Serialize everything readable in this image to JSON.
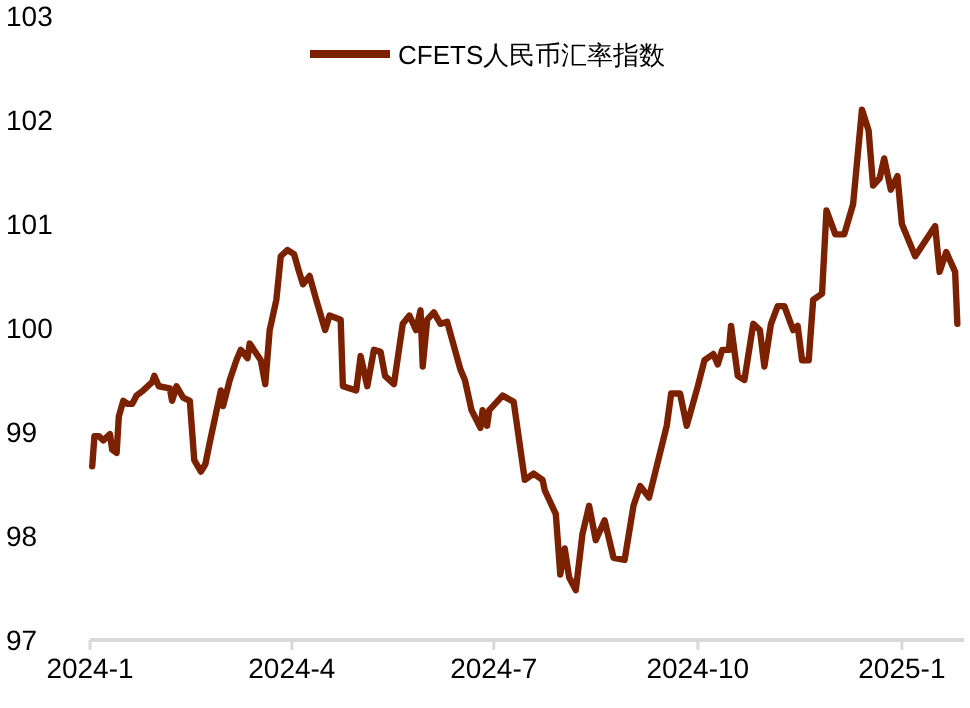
{
  "chart_data": {
    "type": "line",
    "legend": "top",
    "xlim": [
      "2024-01-01",
      "2025-01-29"
    ],
    "xticks": [
      {
        "value": "2024-01-01",
        "label": "2024-1"
      },
      {
        "value": "2024-04-01",
        "label": "2024-4"
      },
      {
        "value": "2024-07-01",
        "label": "2024-7"
      },
      {
        "value": "2024-10-01",
        "label": "2024-10"
      },
      {
        "value": "2025-01-01",
        "label": "2025-1"
      }
    ],
    "ylim": [
      97,
      103
    ],
    "yticks": [
      97,
      98,
      99,
      100,
      101,
      102,
      103
    ],
    "grid": false,
    "x": [
      "2024-01-02",
      "2024-01-03",
      "2024-01-05",
      "2024-01-07",
      "2024-01-10",
      "2024-01-11",
      "2024-01-13",
      "2024-01-14",
      "2024-01-16",
      "2024-01-18",
      "2024-01-20",
      "2024-01-22",
      "2024-01-25",
      "2024-01-29",
      "2024-01-30",
      "2024-02-01",
      "2024-02-06",
      "2024-02-07",
      "2024-02-09",
      "2024-02-12",
      "2024-02-15",
      "2024-02-17",
      "2024-02-20",
      "2024-02-22",
      "2024-02-24",
      "2024-02-29",
      "2024-03-01",
      "2024-03-04",
      "2024-03-07",
      "2024-03-09",
      "2024-03-12",
      "2024-03-13",
      "2024-03-18",
      "2024-03-20",
      "2024-03-22",
      "2024-03-25",
      "2024-03-27",
      "2024-03-30",
      "2024-04-02",
      "2024-04-04",
      "2024-04-06",
      "2024-04-09",
      "2024-04-12",
      "2024-04-16",
      "2024-04-18",
      "2024-04-23",
      "2024-04-24",
      "2024-04-30",
      "2024-05-02",
      "2024-05-05",
      "2024-05-08",
      "2024-05-11",
      "2024-05-13",
      "2024-05-17",
      "2024-05-21",
      "2024-05-24",
      "2024-05-27",
      "2024-05-29",
      "2024-05-30",
      "2024-06-01",
      "2024-06-04",
      "2024-06-07",
      "2024-06-10",
      "2024-06-16",
      "2024-06-18",
      "2024-06-21",
      "2024-06-25",
      "2024-06-26",
      "2024-06-28",
      "2024-06-29",
      "2024-07-05",
      "2024-07-10",
      "2024-07-15",
      "2024-07-19",
      "2024-07-23",
      "2024-07-24",
      "2024-07-29",
      "2024-07-31",
      "2024-08-02",
      "2024-08-04",
      "2024-08-07",
      "2024-08-10",
      "2024-08-13",
      "2024-08-16",
      "2024-08-20",
      "2024-08-24",
      "2024-08-29",
      "2024-09-02",
      "2024-09-05",
      "2024-09-09",
      "2024-09-17",
      "2024-09-19",
      "2024-09-23",
      "2024-09-26",
      "2024-10-01",
      "2024-10-04",
      "2024-10-08",
      "2024-10-10",
      "2024-10-12",
      "2024-10-15",
      "2024-10-16",
      "2024-10-19",
      "2024-10-22",
      "2024-10-26",
      "2024-10-29",
      "2024-10-31",
      "2024-11-03",
      "2024-11-06",
      "2024-11-09",
      "2024-11-13",
      "2024-11-15",
      "2024-11-17",
      "2024-11-20",
      "2024-11-22",
      "2024-11-26",
      "2024-11-28",
      "2024-12-02",
      "2024-12-06",
      "2024-12-10",
      "2024-12-14",
      "2024-12-17",
      "2024-12-19",
      "2024-12-22",
      "2024-12-24",
      "2024-12-27",
      "2024-12-30",
      "2025-01-01",
      "2025-01-07",
      "2025-01-16",
      "2025-01-18",
      "2025-01-21",
      "2025-01-25",
      "2025-01-26"
    ],
    "series": [
      {
        "name": "CFETS人民币汇率指数",
        "color": "#7b2100",
        "values": [
          98.67,
          98.96,
          98.96,
          98.92,
          98.98,
          98.83,
          98.8,
          99.15,
          99.3,
          99.27,
          99.27,
          99.35,
          99.4,
          99.48,
          99.54,
          99.44,
          99.42,
          99.3,
          99.44,
          99.33,
          99.3,
          98.73,
          98.62,
          98.69,
          98.9,
          99.4,
          99.25,
          99.5,
          99.69,
          99.79,
          99.71,
          99.85,
          99.69,
          99.46,
          99.98,
          100.27,
          100.69,
          100.75,
          100.71,
          100.56,
          100.42,
          100.5,
          100.27,
          99.98,
          100.12,
          100.08,
          99.44,
          99.4,
          99.73,
          99.44,
          99.79,
          99.77,
          99.54,
          99.46,
          100.04,
          100.12,
          99.98,
          100.17,
          99.63,
          100.08,
          100.15,
          100.04,
          100.06,
          99.6,
          99.5,
          99.21,
          99.04,
          99.21,
          99.06,
          99.21,
          99.35,
          99.29,
          98.54,
          98.6,
          98.54,
          98.44,
          98.21,
          97.63,
          97.88,
          97.6,
          97.48,
          98.02,
          98.29,
          97.96,
          98.15,
          97.79,
          97.77,
          98.29,
          98.48,
          98.37,
          99.06,
          99.37,
          99.37,
          99.06,
          99.44,
          99.69,
          99.75,
          99.65,
          99.79,
          99.79,
          100.02,
          99.54,
          99.5,
          100.04,
          99.98,
          99.63,
          100.04,
          100.21,
          100.21,
          99.98,
          100.02,
          99.69,
          99.69,
          100.27,
          100.33,
          101.13,
          100.9,
          100.9,
          101.19,
          102.1,
          101.9,
          101.37,
          101.44,
          101.63,
          101.33,
          101.46,
          101.0,
          100.69,
          100.98,
          100.54,
          100.73,
          100.54,
          100.04
        ]
      }
    ]
  }
}
